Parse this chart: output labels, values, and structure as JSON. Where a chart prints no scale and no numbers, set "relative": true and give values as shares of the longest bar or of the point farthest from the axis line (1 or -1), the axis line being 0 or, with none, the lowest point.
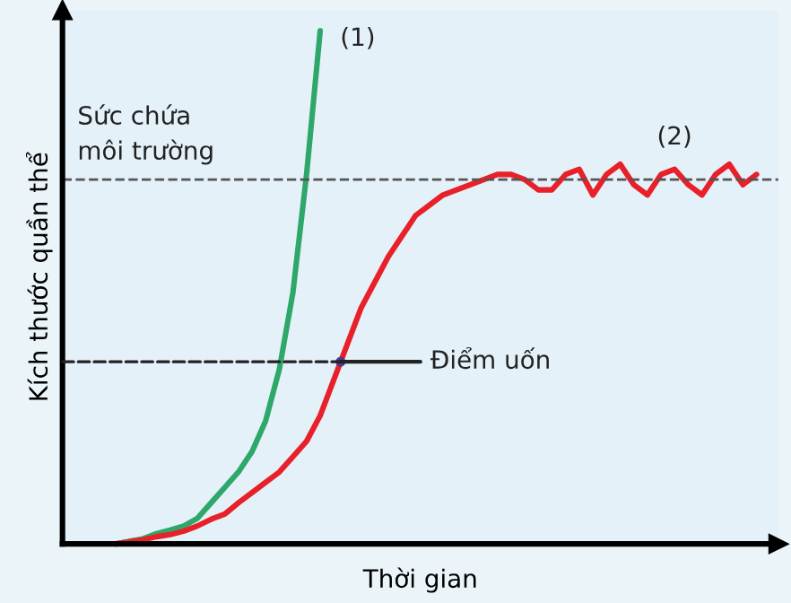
{
  "chart_data": {
    "type": "line",
    "relative": true,
    "xlabel": "Thời gian",
    "ylabel": "Kích thước quần thể",
    "categories": [
      null,
      null,
      null,
      null,
      null,
      null,
      null,
      null,
      null,
      null,
      null,
      null,
      null,
      null,
      null,
      null,
      null,
      null,
      null,
      null,
      null,
      null,
      null,
      null,
      null,
      null,
      null,
      null,
      null,
      null,
      null,
      null,
      null,
      null,
      null,
      null,
      null,
      null,
      null,
      null,
      null,
      null,
      null,
      null,
      null,
      null,
      null,
      null
    ],
    "series": [
      {
        "name": "(1)",
        "color": "#2ea86a",
        "values": [
          0,
          0.005,
          0.01,
          0.02,
          0.027,
          0.035,
          0.05,
          0.08,
          0.11,
          0.14,
          0.18,
          0.24,
          0.34,
          0.49,
          0.72,
          1,
          null,
          null,
          null,
          null,
          null,
          null,
          null,
          null,
          null,
          null,
          null,
          null,
          null,
          null,
          null,
          null,
          null,
          null,
          null,
          null,
          null,
          null,
          null,
          null,
          null,
          null,
          null,
          null,
          null,
          null,
          null,
          null
        ]
      },
      {
        "name": "(2)",
        "color": "#e8202a",
        "values": [
          0,
          0.004,
          0.008,
          0.014,
          0.018,
          0.025,
          0.035,
          0.048,
          0.058,
          0.08,
          0.1,
          0.12,
          0.14,
          0.17,
          0.2,
          0.25,
          0.32,
          0.39,
          0.46,
          0.51,
          0.56,
          0.6,
          0.64,
          0.66,
          0.68,
          0.69,
          0.7,
          0.71,
          0.72,
          0.72,
          0.71,
          0.69,
          0.69,
          0.72,
          0.73,
          0.68,
          0.72,
          0.74,
          0.7,
          0.68,
          0.72,
          0.73,
          0.7,
          0.68,
          0.72,
          0.74,
          0.7,
          0.72
        ]
      }
    ],
    "ref_lines": [
      {
        "axis": "y",
        "value": 0.71,
        "label": "Sức chứa\nmôi trường",
        "line_style": "dashed",
        "color": "#555555"
      }
    ],
    "annotations": [
      "Điểm uốn"
    ],
    "grid": false,
    "legend": false,
    "marker": "none",
    "line_style": "solid"
  }
}
